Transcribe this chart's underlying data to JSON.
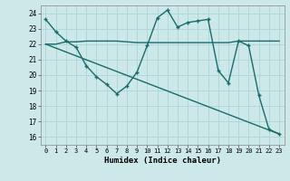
{
  "xlabel": "Humidex (Indice chaleur)",
  "bg_color": "#cce8e8",
  "grid_color": "#b0d8d8",
  "line_color": "#1a6b6b",
  "xlim": [
    -0.5,
    23.5
  ],
  "ylim": [
    15.5,
    24.5
  ],
  "yticks": [
    16,
    17,
    18,
    19,
    20,
    21,
    22,
    23,
    24
  ],
  "xticks": [
    0,
    1,
    2,
    3,
    4,
    5,
    6,
    7,
    8,
    9,
    10,
    11,
    12,
    13,
    14,
    15,
    16,
    17,
    18,
    19,
    20,
    21,
    22,
    23
  ],
  "line1_x": [
    0,
    1,
    2,
    3,
    4,
    5,
    6,
    7,
    8,
    9,
    10,
    11,
    12,
    13,
    14,
    15,
    16,
    17,
    18,
    19,
    20,
    21,
    22,
    23
  ],
  "line1_y": [
    23.6,
    22.8,
    22.2,
    21.8,
    20.6,
    19.9,
    19.4,
    18.8,
    19.3,
    20.2,
    21.9,
    23.7,
    24.2,
    23.1,
    23.4,
    23.5,
    23.6,
    20.3,
    19.5,
    22.2,
    21.9,
    18.7,
    16.5,
    16.2
  ],
  "line2_x": [
    0,
    1,
    2,
    3,
    4,
    5,
    6,
    7,
    8,
    9,
    10,
    11,
    12,
    13,
    14,
    15,
    16,
    17,
    18,
    19,
    20,
    21,
    22,
    23
  ],
  "line2_y": [
    22.0,
    22.0,
    22.15,
    22.15,
    22.2,
    22.2,
    22.2,
    22.2,
    22.15,
    22.1,
    22.1,
    22.1,
    22.1,
    22.1,
    22.1,
    22.1,
    22.1,
    22.1,
    22.1,
    22.2,
    22.2,
    22.2,
    22.2,
    22.2
  ],
  "line3_x": [
    0,
    23
  ],
  "line3_y": [
    22.0,
    16.2
  ]
}
